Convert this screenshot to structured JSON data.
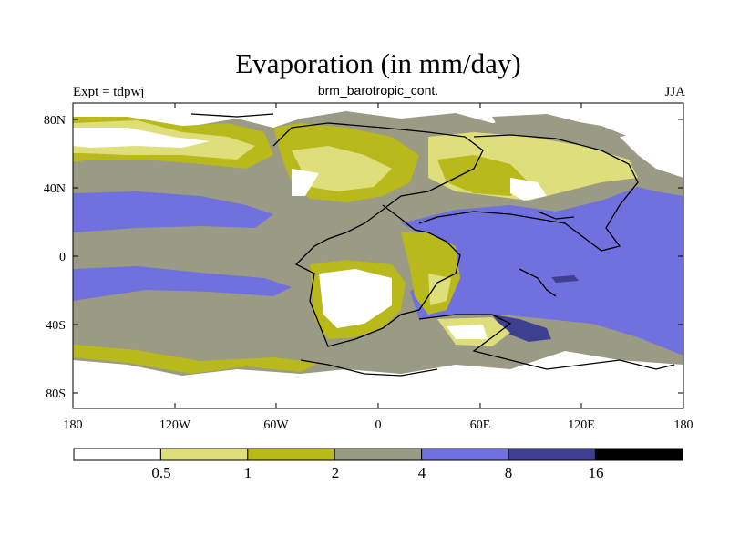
{
  "title": "Evaporation (in mm/day)",
  "subtitle": "brm_barotropic_cont.",
  "left_string": "Expt = tdpwj",
  "right_string": "JJA",
  "lat_ticks": [
    "80N",
    "40N",
    "0",
    "40S",
    "80S"
  ],
  "lon_ticks": [
    "180",
    "120W",
    "60W",
    "0",
    "60E",
    "120E",
    "180"
  ],
  "colorbar": {
    "colors": [
      "#ffffff",
      "#dede7a",
      "#b9b91b",
      "#9a9a85",
      "#7070df",
      "#3f3f8f",
      "#000000"
    ],
    "labels": [
      "0.5",
      "1",
      "2",
      "4",
      "8",
      "16"
    ]
  },
  "colors": {
    "ocean_high": "#7070df",
    "ocean_mid": "#9a9a85",
    "coast": "#000000"
  }
}
